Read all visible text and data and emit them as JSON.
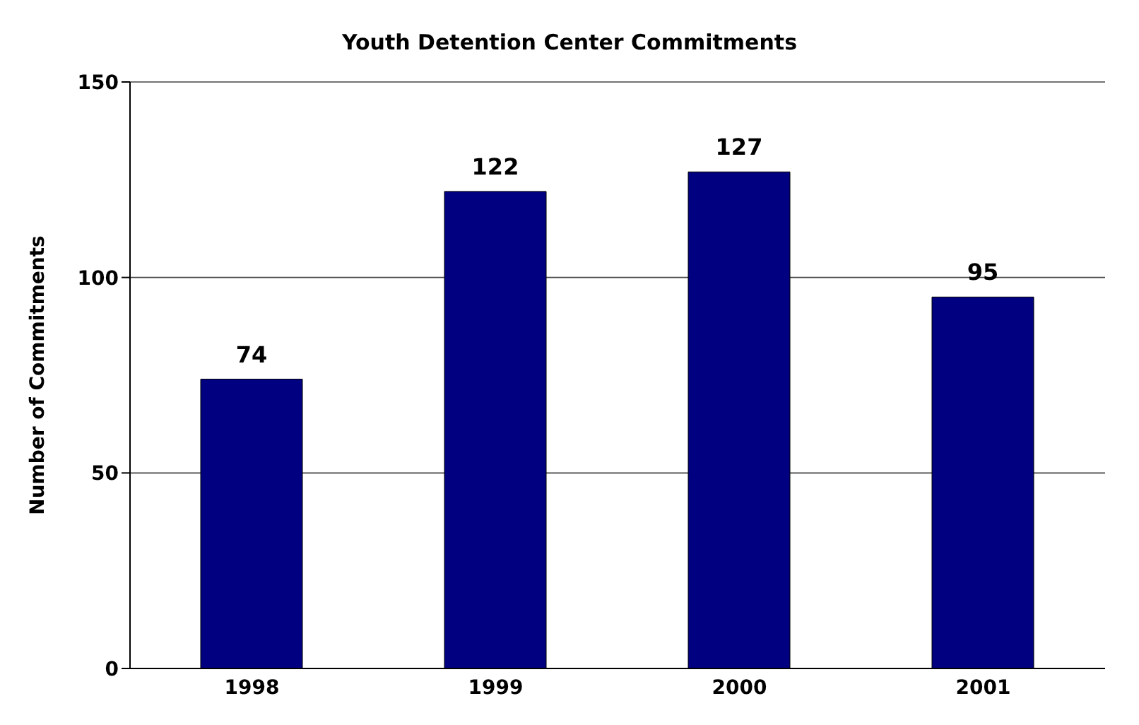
{
  "chart_data": {
    "type": "bar",
    "title": "Youth Detention Center Commitments",
    "ylabel": "Number of Commitments",
    "categories": [
      "1998",
      "1999",
      "2000",
      "2001"
    ],
    "values": [
      74,
      122,
      127,
      95
    ],
    "color": "#000080",
    "ylim": [
      0,
      150
    ],
    "yticks": [
      0,
      50,
      100,
      150
    ],
    "grid": "y",
    "data_labels": true
  }
}
